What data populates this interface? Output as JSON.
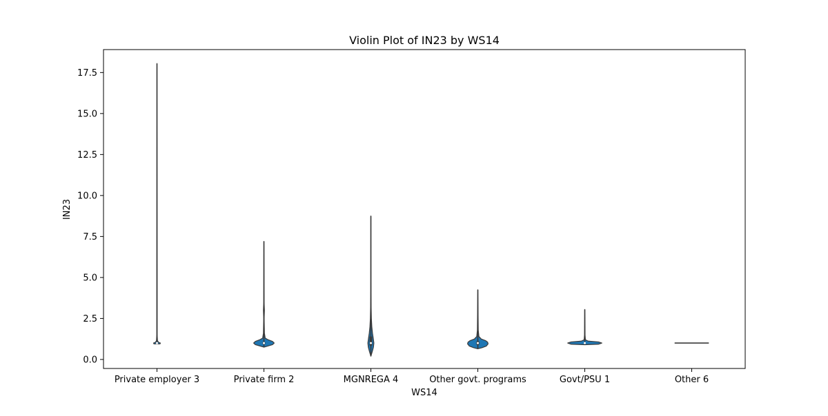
{
  "chart_data": {
    "type": "violin",
    "title": "Violin Plot of IN23 by WS14",
    "xlabel": "WS14",
    "ylabel": "IN23",
    "ylim": [
      -0.55,
      18.9
    ],
    "yticks": [
      0.0,
      2.5,
      5.0,
      7.5,
      10.0,
      12.5,
      15.0,
      17.5
    ],
    "ytick_labels": [
      "0.0",
      "2.5",
      "5.0",
      "7.5",
      "10.0",
      "12.5",
      "15.0",
      "17.5"
    ],
    "grid": false,
    "fill_color": "#1f77b4",
    "line_color": "#3a3a3a",
    "categories": [
      "Private employer 3",
      "Private firm 2",
      "MGNREGA 4",
      "Other govt. programs",
      "Govt/PSU 1",
      "Other 6"
    ],
    "series": [
      {
        "category": "Private employer 3",
        "min": 0.95,
        "max": 18.05,
        "q1": 1.0,
        "median": 1.0,
        "q3": 1.0,
        "density": [
          [
            0.95,
            0.07
          ],
          [
            1.0,
            0.08
          ],
          [
            1.05,
            0.035
          ],
          [
            1.15,
            0.012
          ],
          [
            1.5,
            0.004
          ],
          [
            18.05,
            0.0
          ]
        ]
      },
      {
        "category": "Private firm 2",
        "min": 0.75,
        "max": 7.2,
        "q1": 0.95,
        "median": 1.0,
        "q3": 1.05,
        "density": [
          [
            0.75,
            0.0
          ],
          [
            0.82,
            0.09
          ],
          [
            0.9,
            0.2
          ],
          [
            1.0,
            0.24
          ],
          [
            1.1,
            0.2
          ],
          [
            1.2,
            0.1
          ],
          [
            1.3,
            0.03
          ],
          [
            1.6,
            0.012
          ],
          [
            2.5,
            0.005
          ],
          [
            3.0,
            0.012
          ],
          [
            3.5,
            0.004
          ],
          [
            7.2,
            0.0
          ]
        ]
      },
      {
        "category": "MGNREGA 4",
        "min": 0.2,
        "max": 8.75,
        "q1": 0.85,
        "median": 1.0,
        "q3": 1.4,
        "density": [
          [
            0.2,
            0.0
          ],
          [
            0.3,
            0.012
          ],
          [
            0.5,
            0.035
          ],
          [
            0.75,
            0.06
          ],
          [
            1.0,
            0.07
          ],
          [
            1.3,
            0.055
          ],
          [
            1.6,
            0.038
          ],
          [
            2.0,
            0.022
          ],
          [
            2.5,
            0.012
          ],
          [
            3.2,
            0.006
          ],
          [
            4.0,
            0.003
          ],
          [
            8.75,
            0.0
          ]
        ]
      },
      {
        "category": "Other govt. programs",
        "min": 0.65,
        "max": 4.25,
        "q1": 0.9,
        "median": 1.0,
        "q3": 1.1,
        "density": [
          [
            0.65,
            0.0
          ],
          [
            0.72,
            0.1
          ],
          [
            0.82,
            0.2
          ],
          [
            0.95,
            0.24
          ],
          [
            1.05,
            0.23
          ],
          [
            1.15,
            0.18
          ],
          [
            1.25,
            0.08
          ],
          [
            1.4,
            0.025
          ],
          [
            1.8,
            0.01
          ],
          [
            4.25,
            0.0
          ]
        ]
      },
      {
        "category": "Govt/PSU 1",
        "min": 0.9,
        "max": 3.05,
        "q1": 1.0,
        "median": 1.0,
        "q3": 1.0,
        "density": [
          [
            0.9,
            0.0
          ],
          [
            0.93,
            0.32
          ],
          [
            1.0,
            0.4
          ],
          [
            1.07,
            0.32
          ],
          [
            1.12,
            0.08
          ],
          [
            1.2,
            0.015
          ],
          [
            1.5,
            0.006
          ],
          [
            3.05,
            0.0
          ]
        ]
      },
      {
        "category": "Other 6",
        "min": 1.0,
        "max": 1.0,
        "q1": 1.0,
        "median": 1.0,
        "q3": 1.0,
        "density": [
          [
            1.0,
            0.4
          ]
        ]
      }
    ]
  }
}
